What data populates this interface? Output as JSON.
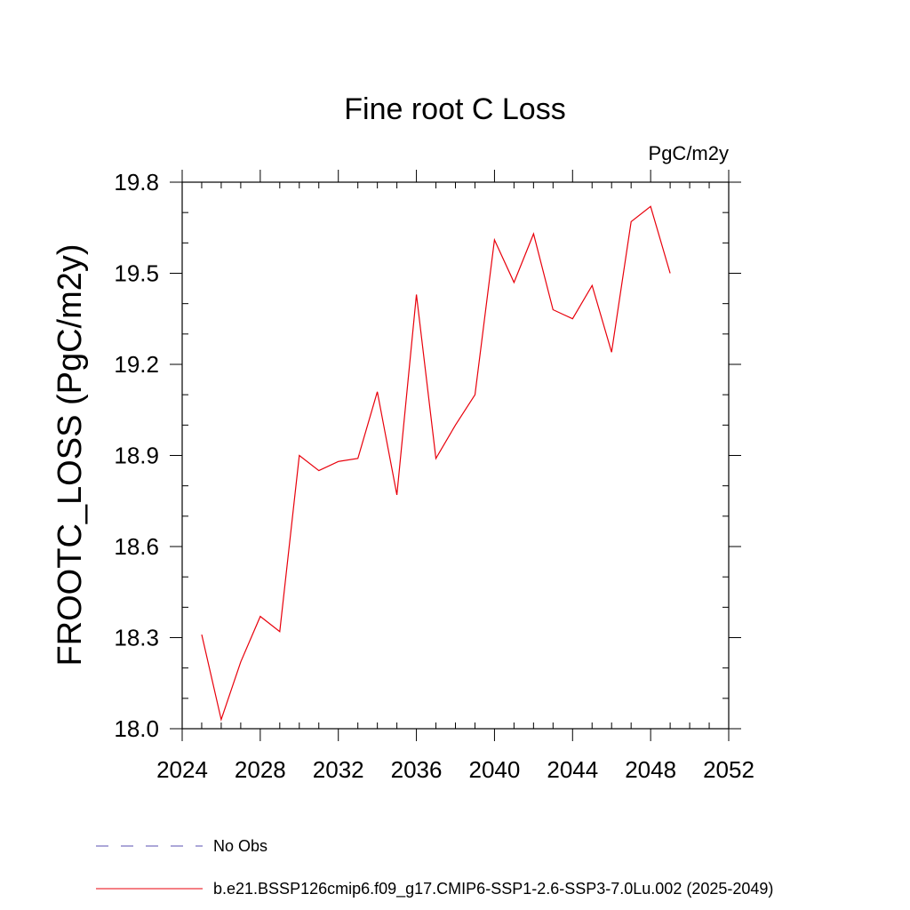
{
  "chart_data": {
    "type": "line",
    "title": "Fine root C Loss",
    "units_label": "PgC/m2y",
    "ylabel": "FROOTC_LOSS  (PgC/m2y)",
    "xlabel": "",
    "xlim": [
      2024,
      2052
    ],
    "ylim": [
      18.0,
      19.8
    ],
    "x_ticks": [
      2024,
      2028,
      2032,
      2036,
      2040,
      2044,
      2048,
      2052
    ],
    "x_minor_step": 1,
    "y_ticks": [
      18.0,
      18.3,
      18.6,
      18.9,
      19.2,
      19.5,
      19.8
    ],
    "y_tick_labels": [
      "18.0",
      "18.3",
      "18.6",
      "18.9",
      "19.2",
      "19.5",
      "19.8"
    ],
    "y_minor_step": 0.1,
    "grid": false,
    "legend_position": "bottom",
    "series": [
      {
        "name": "No Obs",
        "color": "#5a4fb0",
        "dash": true,
        "x": [],
        "y": []
      },
      {
        "name": "b.e21.BSSP126cmip6.f09_g17.CMIP6-SSP1-2.6-SSP3-7.0Lu.002 (2025-2049)",
        "color": "#e8000b",
        "dash": false,
        "x": [
          2025,
          2026,
          2027,
          2028,
          2029,
          2030,
          2031,
          2032,
          2033,
          2034,
          2035,
          2036,
          2037,
          2038,
          2039,
          2040,
          2041,
          2042,
          2043,
          2044,
          2045,
          2046,
          2047,
          2048,
          2049
        ],
        "y": [
          18.31,
          18.03,
          18.22,
          18.37,
          18.32,
          18.9,
          18.85,
          18.88,
          18.89,
          19.11,
          18.77,
          19.43,
          18.89,
          19.0,
          19.1,
          19.61,
          19.47,
          19.63,
          19.38,
          19.35,
          19.46,
          19.24,
          19.67,
          19.72,
          19.5
        ]
      }
    ]
  }
}
